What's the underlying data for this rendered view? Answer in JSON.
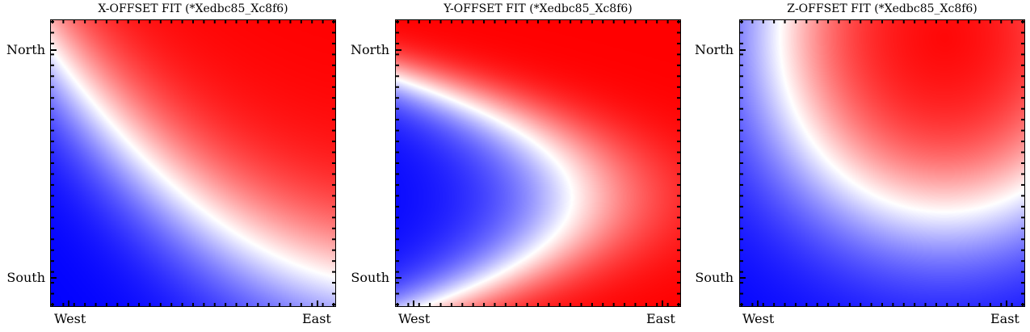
{
  "chart_data": [
    {
      "type": "heatmap",
      "title": "X-OFFSET FIT (*Xedbc85_Xc8f6)",
      "x_tick_labels": [
        "West",
        "East"
      ],
      "y_tick_labels": [
        "North",
        "South"
      ],
      "colormap": [
        "#0000ff",
        "#ffffff",
        "#ff0000"
      ],
      "grid": false
    },
    {
      "type": "heatmap",
      "title": "Y-OFFSET FIT (*Xedbc85_Xc8f6)",
      "x_tick_labels": [
        "West",
        "East"
      ],
      "y_tick_labels": [
        "North",
        "South"
      ],
      "colormap": [
        "#0000ff",
        "#ffffff",
        "#ff0000"
      ],
      "grid": false
    },
    {
      "type": "heatmap",
      "title": "Z-OFFSET FIT (*Xedbc85_Xc8f6)",
      "x_tick_labels": [
        "West",
        "East"
      ],
      "y_tick_labels": [
        "North",
        "South"
      ],
      "colormap": [
        "#0000ff",
        "#ffffff",
        "#ff0000"
      ],
      "grid": false
    }
  ]
}
